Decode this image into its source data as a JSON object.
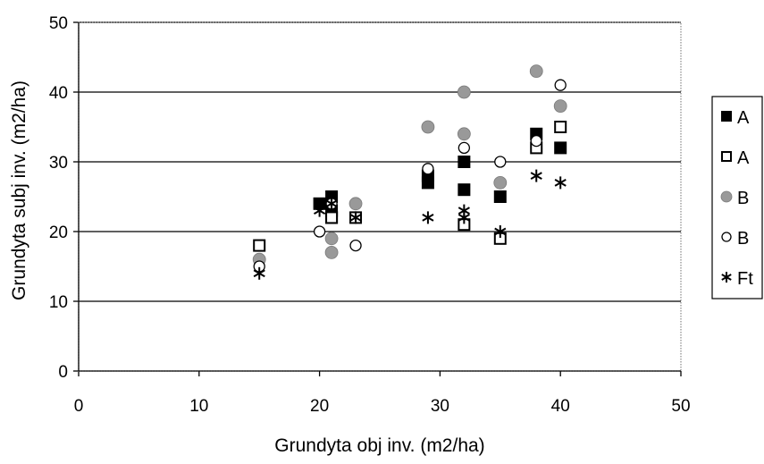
{
  "chart_data": {
    "type": "scatter",
    "xlabel": "Grundyta obj inv. (m2/ha)",
    "ylabel": "Grundyta subj inv. (m2/ha)",
    "xlim": [
      0,
      50
    ],
    "ylim": [
      0,
      50
    ],
    "x_ticks": [
      "0",
      "10",
      "20",
      "30",
      "40",
      "50"
    ],
    "y_ticks": [
      "0",
      "10",
      "20",
      "30",
      "40",
      "50"
    ],
    "grid": "horizontal",
    "legend_position": "right",
    "series": [
      {
        "name": "A",
        "marker": "filled-square",
        "color": "#000000",
        "points": [
          [
            20,
            24
          ],
          [
            21,
            25
          ],
          [
            21,
            22
          ],
          [
            21,
            23
          ],
          [
            29,
            27
          ],
          [
            29,
            28
          ],
          [
            32,
            26
          ],
          [
            32,
            30
          ],
          [
            35,
            25
          ],
          [
            38,
            34
          ],
          [
            40,
            32
          ]
        ]
      },
      {
        "name": "A",
        "marker": "open-square",
        "color": "#000000",
        "points": [
          [
            15,
            18
          ],
          [
            21,
            22
          ],
          [
            23,
            22
          ],
          [
            32,
            21
          ],
          [
            35,
            19
          ],
          [
            38,
            32
          ],
          [
            40,
            35
          ]
        ]
      },
      {
        "name": "B",
        "marker": "filled-circle",
        "color": "#999999",
        "points": [
          [
            15,
            16
          ],
          [
            21,
            17
          ],
          [
            21,
            19
          ],
          [
            23,
            24
          ],
          [
            29,
            35
          ],
          [
            32,
            34
          ],
          [
            32,
            40
          ],
          [
            35,
            27
          ],
          [
            38,
            43
          ],
          [
            40,
            38
          ]
        ]
      },
      {
        "name": "B",
        "marker": "open-circle",
        "color": "#000000",
        "points": [
          [
            15,
            15
          ],
          [
            20,
            20
          ],
          [
            21,
            24
          ],
          [
            23,
            18
          ],
          [
            29,
            29
          ],
          [
            32,
            32
          ],
          [
            35,
            30
          ],
          [
            38,
            33
          ],
          [
            40,
            41
          ]
        ]
      },
      {
        "name": "Ft",
        "marker": "asterisk",
        "color": "#000000",
        "points": [
          [
            15,
            14
          ],
          [
            20,
            23
          ],
          [
            21,
            24
          ],
          [
            23,
            22
          ],
          [
            29,
            22
          ],
          [
            32,
            22
          ],
          [
            32,
            23
          ],
          [
            35,
            20
          ],
          [
            38,
            28
          ],
          [
            40,
            27
          ]
        ]
      }
    ]
  }
}
